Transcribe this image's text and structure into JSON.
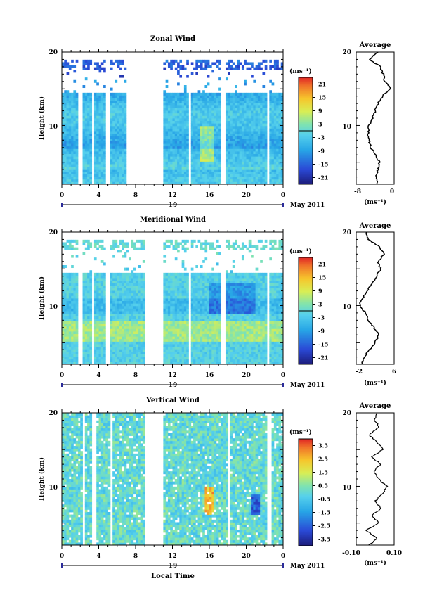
{
  "chart_data": [
    {
      "type": "heatmap",
      "title": "Zonal Wind",
      "ylabel": "Height (km)",
      "ylim": [
        2,
        20
      ],
      "yticks": [
        "20",
        "10"
      ],
      "xlabel": "",
      "xticks": [
        "0",
        "4",
        "8",
        "12",
        "16",
        "20",
        "0"
      ],
      "date_day": "19",
      "date_label": "May 2011",
      "colorbar": {
        "unit": "(ms⁻¹)",
        "ticks": [
          "21",
          "15",
          "9",
          "3",
          "-3",
          "-9",
          "-15",
          "-21"
        ],
        "range": [
          -24,
          24
        ]
      },
      "gaps_hours": [
        [
          7.1,
          9.2
        ],
        [
          9.2,
          11.0
        ]
      ],
      "profile": {
        "title": "Average",
        "xlabel": "(ms⁻¹)",
        "xticks": [
          "-8",
          "0"
        ],
        "xlim": [
          -8,
          1
        ],
        "yticks": [
          "20",
          "10"
        ],
        "heights": [
          2,
          3,
          4,
          5,
          6,
          7,
          8,
          9,
          10,
          11,
          12,
          13,
          14,
          15,
          16,
          17,
          18,
          19,
          20
        ],
        "values": [
          -3,
          -3.2,
          -2.8,
          -2.5,
          -3.5,
          -4.5,
          -5,
          -5.2,
          -5,
          -4.2,
          -3.5,
          -2.8,
          -1.8,
          0.2,
          -1.2,
          -1.6,
          -2.2,
          -5,
          -2.8
        ]
      }
    },
    {
      "type": "heatmap",
      "title": "Meridional Wind",
      "ylabel": "Height (km)",
      "ylim": [
        2,
        20
      ],
      "yticks": [
        "20",
        "10"
      ],
      "xlabel": "",
      "xticks": [
        "0",
        "4",
        "8",
        "12",
        "16",
        "20",
        "0"
      ],
      "date_day": "19",
      "date_label": "May 2011",
      "colorbar": {
        "unit": "(ms⁻¹)",
        "ticks": [
          "21",
          "15",
          "9",
          "3",
          "-3",
          "-9",
          "-15",
          "-21"
        ],
        "range": [
          -24,
          24
        ]
      },
      "gaps_hours": [
        [
          9.0,
          11.0
        ]
      ],
      "profile": {
        "title": "Average",
        "xlabel": "(ms⁻¹)",
        "xticks": [
          "-2",
          "6"
        ],
        "xlim": [
          -3,
          6
        ],
        "yticks": [
          "20",
          "10"
        ],
        "heights": [
          2,
          3,
          4,
          5,
          6,
          7,
          8,
          9,
          10,
          11,
          12,
          13,
          14,
          15,
          16,
          17,
          18,
          19,
          20
        ],
        "values": [
          -1.8,
          -1.2,
          0.2,
          1.5,
          2.4,
          1.2,
          -0.2,
          -0.8,
          -2.2,
          -1.5,
          -0.4,
          0.8,
          1.8,
          2.8,
          2.2,
          3.5,
          2.5,
          0,
          -0.6
        ]
      }
    },
    {
      "type": "heatmap",
      "title": "Vertical Wind",
      "ylabel": "Height (km)",
      "ylim": [
        2,
        20
      ],
      "yticks": [
        "20",
        "10"
      ],
      "xlabel": "Local Time",
      "xticks": [
        "0",
        "4",
        "8",
        "12",
        "16",
        "20",
        "0"
      ],
      "date_day": "19",
      "date_label": "May 2011",
      "colorbar": {
        "unit": "(ms⁻¹)",
        "ticks": [
          "3.5",
          "2.5",
          "1.5",
          "0.5",
          "-0.5",
          "-1.5",
          "-2.5",
          "-3.5"
        ],
        "range": [
          -4,
          4
        ]
      },
      "gaps_hours": [
        [
          9.0,
          11.0
        ]
      ],
      "profile": {
        "title": "Average",
        "xlabel": "(ms⁻¹)",
        "xticks": [
          "-0.10",
          "0.10"
        ],
        "xlim": [
          -0.1,
          0.1
        ],
        "yticks": [
          "20",
          "10"
        ],
        "heights": [
          2,
          3,
          4,
          5,
          6,
          7,
          8,
          9,
          10,
          11,
          12,
          13,
          14,
          15,
          16,
          17,
          18,
          19,
          20
        ],
        "values": [
          -0.03,
          0.01,
          -0.05,
          0.02,
          -0.02,
          0.03,
          0.0,
          0.04,
          0.06,
          0.02,
          -0.01,
          0.03,
          -0.02,
          0.04,
          0.01,
          -0.03,
          0.02,
          0.0,
          0.01
        ]
      }
    }
  ]
}
